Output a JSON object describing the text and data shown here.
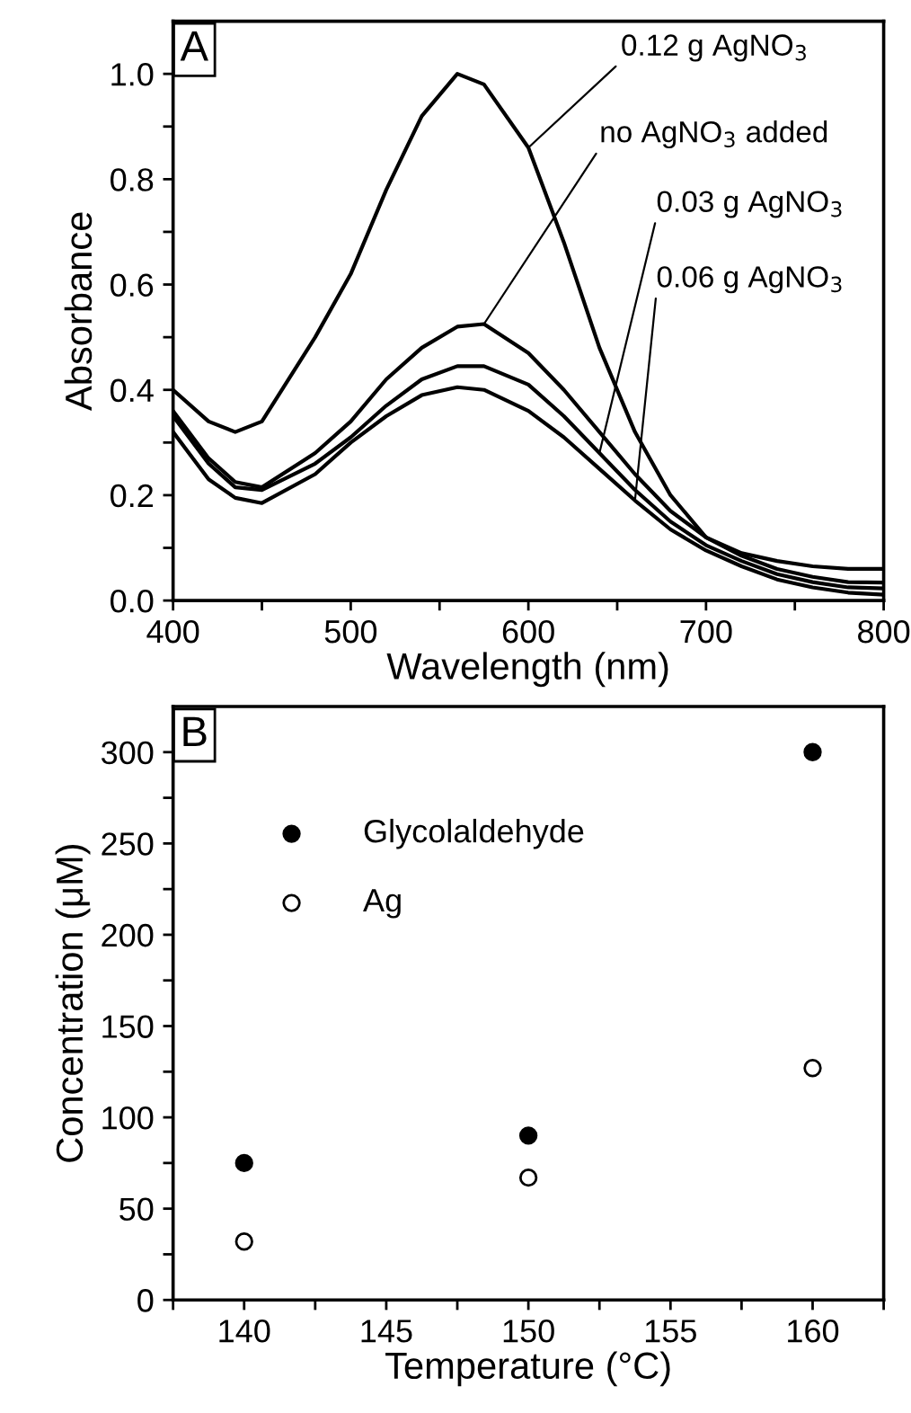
{
  "chart_data": [
    {
      "type": "line",
      "xlabel": "Wavelength (nm)",
      "ylabel": "Absorbance",
      "annotations": [
        "A"
      ],
      "x": [
        400,
        420,
        435,
        450,
        480,
        500,
        520,
        540,
        560,
        575,
        600,
        620,
        640,
        660,
        680,
        700,
        720,
        740,
        760,
        780,
        800
      ],
      "series": [
        {
          "name": "0.12 g AgNO$_{3}$",
          "color": "#000000",
          "values": [
            0.4,
            0.34,
            0.32,
            0.34,
            0.5,
            0.62,
            0.78,
            0.92,
            1.0,
            0.98,
            0.86,
            0.68,
            0.48,
            0.32,
            0.2,
            0.12,
            0.09,
            0.075,
            0.065,
            0.06,
            0.06
          ]
        },
        {
          "name": "no AgNO$_{3}$ added",
          "color": "#000000",
          "values": [
            0.36,
            0.27,
            0.225,
            0.215,
            0.28,
            0.34,
            0.42,
            0.48,
            0.52,
            0.525,
            0.47,
            0.4,
            0.32,
            0.24,
            0.17,
            0.12,
            0.085,
            0.06,
            0.045,
            0.035,
            0.034
          ]
        },
        {
          "name": "0.03 g AgNO$_{3}$",
          "color": "#000000",
          "values": [
            0.35,
            0.26,
            0.215,
            0.21,
            0.26,
            0.31,
            0.37,
            0.42,
            0.445,
            0.445,
            0.41,
            0.35,
            0.28,
            0.21,
            0.15,
            0.105,
            0.075,
            0.05,
            0.035,
            0.025,
            0.023
          ]
        },
        {
          "name": "0.06 g AgNO$_{3}$",
          "color": "#000000",
          "values": [
            0.32,
            0.23,
            0.195,
            0.185,
            0.24,
            0.3,
            0.35,
            0.39,
            0.405,
            0.4,
            0.36,
            0.31,
            0.25,
            0.19,
            0.135,
            0.095,
            0.065,
            0.04,
            0.025,
            0.015,
            0.011
          ]
        }
      ],
      "xlim": [
        400,
        800
      ],
      "ylim": [
        0,
        1.1
      ],
      "xticks": [
        400,
        {
          "value": 450,
          "label": null
        },
        500,
        {
          "value": 550,
          "label": null
        },
        600,
        {
          "value": 650,
          "label": null
        },
        700,
        {
          "value": 750,
          "label": null
        },
        800
      ],
      "yticks": [
        "0.0",
        {
          "value": 0.1,
          "label": null
        },
        {
          "value": 0.2,
          "label": "0.2"
        },
        {
          "value": 0.3,
          "label": null
        },
        {
          "value": 0.4,
          "label": "0.4"
        },
        {
          "value": 0.5,
          "label": null
        },
        {
          "value": 0.6,
          "label": "0.6"
        },
        {
          "value": 0.7,
          "label": null
        },
        {
          "value": 0.8,
          "label": "0.8"
        },
        {
          "value": 0.9,
          "label": null
        },
        {
          "value": 1.0,
          "label": "1.0"
        }
      ],
      "line_style": "solid",
      "marker": "none",
      "grid": false,
      "legend": false
    },
    {
      "type": "scatter",
      "xlabel": "Temperature (°C)",
      "ylabel": "Concentration (μM)",
      "annotations": [
        "B"
      ],
      "x": [
        140,
        150,
        160
      ],
      "series": [
        {
          "name": "Glycolaldehyde",
          "color": "#000000",
          "values": [
            75,
            90,
            300
          ],
          "marker": "circle"
        },
        {
          "name": "Ag",
          "color": "#000000",
          "values": [
            32,
            67,
            127
          ],
          "marker": "open circle"
        }
      ],
      "xlim": [
        137.5,
        162.5
      ],
      "ylim": [
        0,
        325
      ],
      "xticks": [
        {
          "value": 137.5,
          "label": null
        },
        140,
        {
          "value": 142.5,
          "label": null
        },
        145,
        {
          "value": 147.5,
          "label": null
        },
        150,
        {
          "value": 152.5,
          "label": null
        },
        155,
        {
          "value": 157.5,
          "label": null
        },
        160,
        {
          "value": 162.5,
          "label": null
        }
      ],
      "yticks": [
        0,
        {
          "value": 25,
          "label": null
        },
        50,
        {
          "value": 75,
          "label": null
        },
        100,
        {
          "value": 125,
          "label": null
        },
        150,
        {
          "value": 175,
          "label": null
        },
        200,
        {
          "value": 225,
          "label": null
        },
        250,
        {
          "value": 275,
          "label": null
        },
        300
      ],
      "grid": false,
      "legend": "top left"
    }
  ]
}
